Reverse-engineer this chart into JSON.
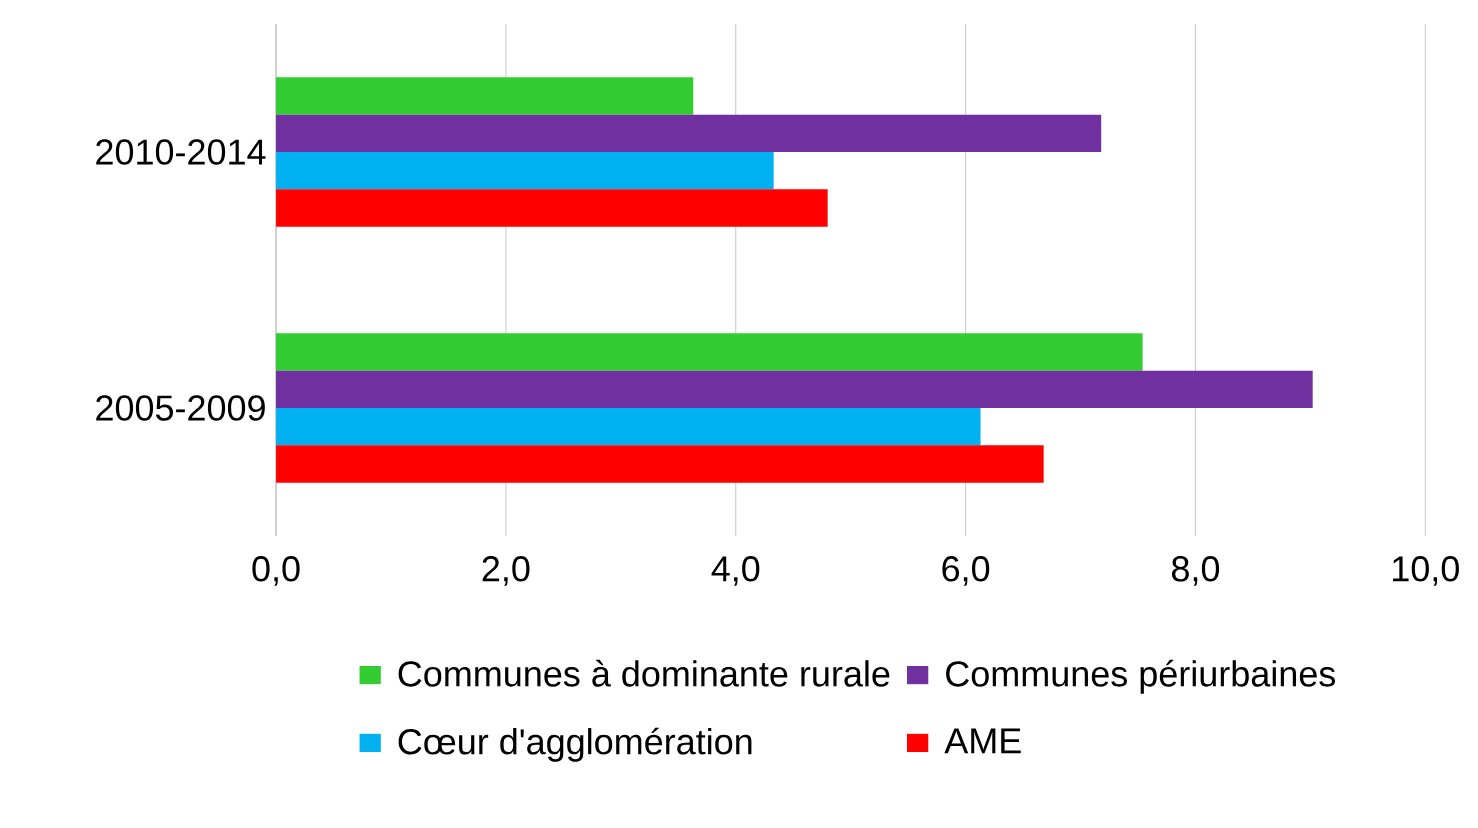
{
  "chart_data": {
    "type": "bar",
    "orientation": "horizontal",
    "categories": [
      "2010-2014",
      "2005-2009"
    ],
    "series": [
      {
        "name": "Communes à dominante rurale",
        "color": "#33cc33",
        "values": [
          3.63,
          7.54
        ]
      },
      {
        "name": "Communes périurbaines",
        "color": "#7030a0",
        "values": [
          7.18,
          9.02
        ]
      },
      {
        "name": "Cœur d'agglomération",
        "color": "#00b0f0",
        "values": [
          4.33,
          6.13
        ]
      },
      {
        "name": "AME",
        "color": "#ff0000",
        "values": [
          4.8,
          6.68
        ]
      }
    ],
    "xlim": [
      0,
      10
    ],
    "xticks": [
      {
        "value": 0,
        "label": "0,0"
      },
      {
        "value": 2,
        "label": "2,0"
      },
      {
        "value": 4,
        "label": "4,0"
      },
      {
        "value": 6,
        "label": "6,0"
      },
      {
        "value": 8,
        "label": "8,0"
      },
      {
        "value": 10,
        "label": "10,0"
      }
    ],
    "grid": "x",
    "legend": "bottom"
  }
}
